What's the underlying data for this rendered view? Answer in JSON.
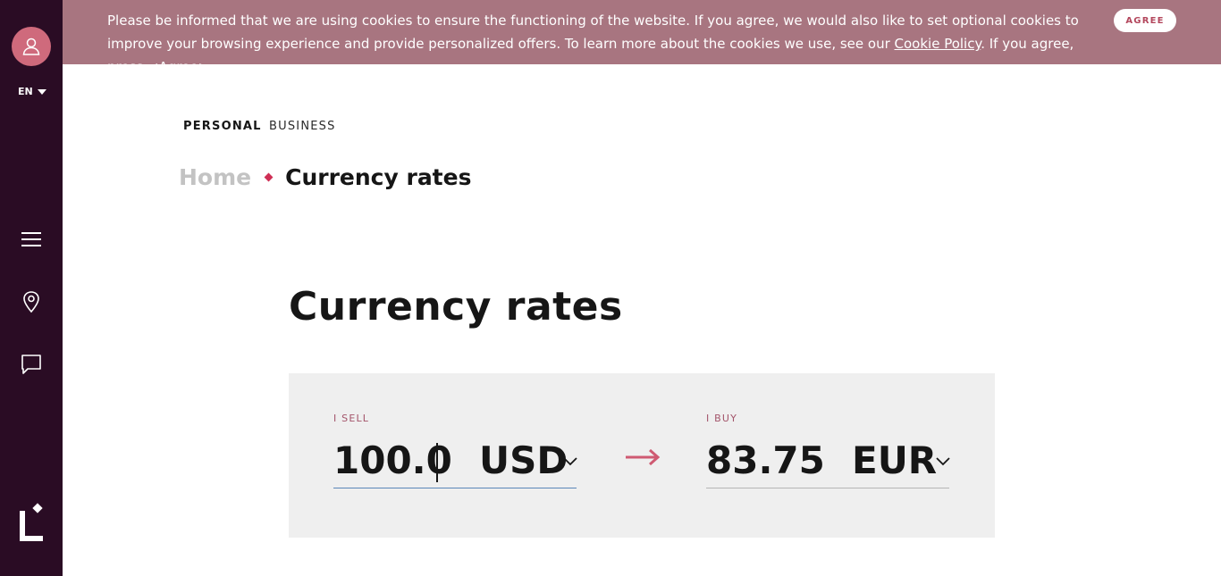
{
  "sidebar": {
    "language": "EN",
    "icons": [
      "user-icon",
      "menu-icon",
      "location-pin-icon",
      "chat-icon",
      "logo-icon"
    ]
  },
  "cookie_banner": {
    "text_before_link": "Please be informed that we are using cookies to ensure the functioning of the website. If you agree, we would also like to set optional cookies to improve your browsing experience and provide personalized offers. To learn more about the cookies we use, see our ",
    "link_text": "Cookie Policy",
    "text_after_link": ". If you agree, press <Agree>",
    "agree_label": "AGREE"
  },
  "segments": {
    "personal": "PERSONAL",
    "business": "BUSINESS"
  },
  "breadcrumb": {
    "home": "Home",
    "current": "Currency rates"
  },
  "page_title": "Currency rates",
  "converter": {
    "sell_label": "I SELL",
    "sell_amount": "100.0",
    "sell_currency": "USD",
    "buy_label": "I BUY",
    "buy_amount": "83.75",
    "buy_currency": "EUR"
  },
  "colors": {
    "sidebar": "#2a0c24",
    "banner": "#a87580",
    "accent": "#cf2f55",
    "converter_bg": "#efefef"
  }
}
